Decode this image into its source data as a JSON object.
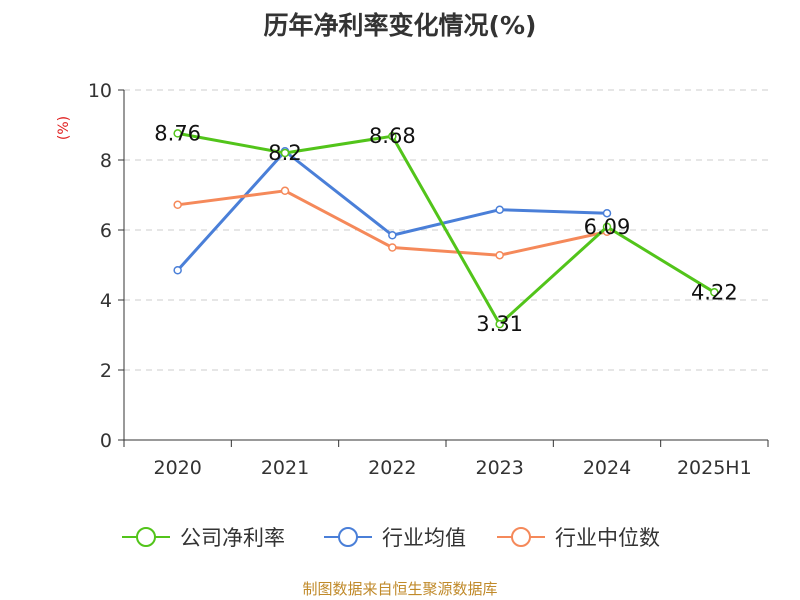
{
  "chart_data": {
    "type": "line",
    "title": "历年净利率变化情况(%)",
    "ylabel": "(%)",
    "xlabel": "",
    "categories": [
      "2020",
      "2021",
      "2022",
      "2023",
      "2024",
      "2025H1"
    ],
    "ylim": [
      0,
      10
    ],
    "yticks": [
      "0",
      "2",
      "4",
      "6",
      "8",
      "10"
    ],
    "grid": true,
    "legend_position": "bottom",
    "series": [
      {
        "name": "公司净利率",
        "color": "#52c41a",
        "values": [
          8.76,
          8.2,
          8.68,
          3.31,
          6.09,
          4.22
        ],
        "labels": [
          "8.76",
          "8.2",
          "8.68",
          "3.31",
          "6.09",
          "4.22"
        ]
      },
      {
        "name": "行业均值",
        "color": "#4a7fd8",
        "values": [
          4.85,
          8.25,
          5.85,
          6.58,
          6.48,
          null
        ],
        "labels": []
      },
      {
        "name": "行业中位数",
        "color": "#f5895a",
        "values": [
          6.72,
          7.12,
          5.5,
          5.28,
          5.95,
          null
        ],
        "labels": []
      }
    ]
  },
  "source": "制图数据来自恒生聚源数据库"
}
